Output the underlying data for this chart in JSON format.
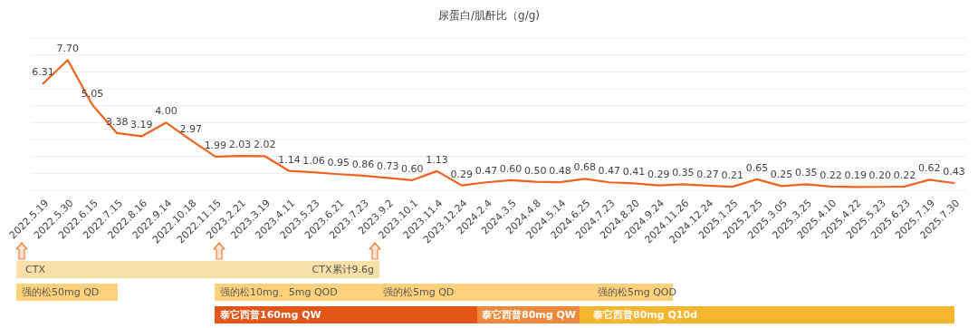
{
  "chart_data": {
    "type": "line",
    "title": "尿蛋白/肌酐比（g/g)",
    "categories": [
      "2022.5.19",
      "2022.5.30",
      "2022.6.15",
      "2022.7.15",
      "2022.8.16",
      "2022.9.14",
      "2022.10.18",
      "2022.11.15",
      "2023.2.21",
      "2023.3.19",
      "2023.4.11",
      "2023.5.23",
      "2023.6.21",
      "2023.7.23",
      "2023.9.2",
      "2023.10.1",
      "2023.11.4",
      "2023.12.24",
      "2024.2.4",
      "2024.3.5",
      "2024.4.8",
      "2024.5.14",
      "2024.6.25",
      "2024.7.23",
      "2024.8.20",
      "2024.9.24",
      "2024.11.26",
      "2024.12.24",
      "2025.1.25",
      "2025.2.25",
      "2025.3.05",
      "2025.3.25",
      "2025.4.10",
      "2025.4.22",
      "2025.5.23",
      "2025.6.23",
      "2025.7.19",
      "2025.7.30"
    ],
    "series": [
      {
        "color": "#f0621f",
        "values": [
          6.31,
          7.7,
          5.05,
          3.38,
          3.19,
          4.0,
          2.97,
          1.99,
          2.03,
          2.02,
          1.14,
          1.06,
          0.95,
          0.86,
          0.73,
          0.6,
          1.13,
          0.29,
          0.47,
          0.6,
          0.5,
          0.48,
          0.68,
          0.47,
          0.41,
          0.29,
          0.35,
          0.27,
          0.21,
          0.65,
          0.25,
          0.35,
          0.22,
          0.19,
          0.2,
          0.22,
          0.62,
          0.43
        ],
        "value_labels": [
          "6.31",
          "7.70",
          "5.05",
          "3.38",
          "3.19",
          "4.00",
          "2.97",
          "1.99",
          "2.03",
          "2.02",
          "1.14",
          "1.06",
          "0.95",
          "0.86",
          "0.73",
          "0.60",
          "1.13",
          "0.29",
          "0.47",
          "0.60",
          "0.50",
          "0.48",
          "0.68",
          "0.47",
          "0.41",
          "0.29",
          "0.35",
          "0.27",
          "0.21",
          "0.65",
          "0.25",
          "0.35",
          "0.22",
          "0.19",
          "0.20",
          "0.22",
          "0.62",
          "0.43"
        ]
      }
    ],
    "ylim": [
      0,
      9
    ],
    "yticks": [
      {
        "value": 0,
        "label": null
      },
      {
        "value": 1,
        "label": null
      },
      {
        "value": 2,
        "label": null
      },
      {
        "value": 3,
        "label": null
      },
      {
        "value": 4,
        "label": null
      },
      {
        "value": 5,
        "label": null
      },
      {
        "value": 6,
        "label": null
      },
      {
        "value": 7,
        "label": null
      },
      {
        "value": 8,
        "label": null
      },
      {
        "value": 9,
        "label": null
      }
    ],
    "tick_labels": "x",
    "grid": "y",
    "annotations": [
      "CTX",
      "CTX累计9.6g",
      "强的松50mg QD",
      "强的松10mg、5mg QOD",
      "强的松5mg QD",
      "强的松5mg QOD",
      "泰它西普160mg QW",
      "泰它西普80mg QW",
      "泰它西普80mg Q10d"
    ]
  }
}
